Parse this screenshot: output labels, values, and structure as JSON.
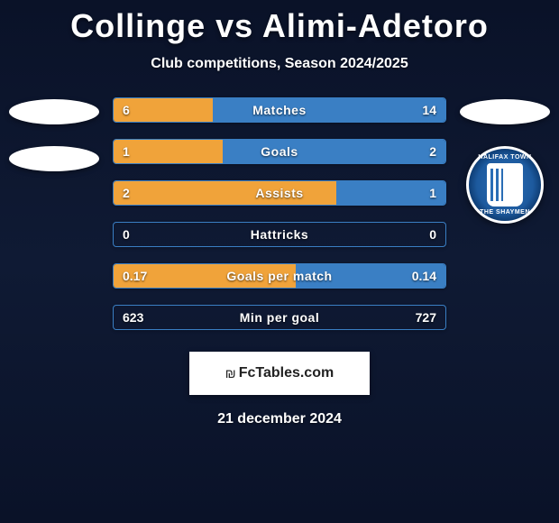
{
  "title": {
    "player1": "Collinge",
    "vs": "vs",
    "player2": "Alimi-Adetoro"
  },
  "subtitle": "Club competitions, Season 2024/2025",
  "colors": {
    "player1_fill": "#f0a33a",
    "player2_fill": "#3a7fc4",
    "row_border": "#3a7fc4",
    "background_top": "#0a1228",
    "background_mid": "#0f1a34",
    "title_color": "#ffffff",
    "text_color": "#ffffff"
  },
  "stats": [
    {
      "label": "Matches",
      "left_val": "6",
      "right_val": "14",
      "left_pct": 30,
      "right_pct": 70
    },
    {
      "label": "Goals",
      "left_val": "1",
      "right_val": "2",
      "left_pct": 33,
      "right_pct": 67
    },
    {
      "label": "Assists",
      "left_val": "2",
      "right_val": "1",
      "left_pct": 67,
      "right_pct": 33
    },
    {
      "label": "Hattricks",
      "left_val": "0",
      "right_val": "0",
      "left_pct": 0,
      "right_pct": 0
    },
    {
      "label": "Goals per match",
      "left_val": "0.17",
      "right_val": "0.14",
      "left_pct": 55,
      "right_pct": 45
    },
    {
      "label": "Min per goal",
      "left_val": "623",
      "right_val": "727",
      "left_pct": 0,
      "right_pct": 0
    }
  ],
  "footer": {
    "brand": "FcTables.com"
  },
  "date": "21 december 2024",
  "crest": {
    "top_text": "HALIFAX TOWN",
    "bottom_text": "THE SHAYMEN"
  }
}
